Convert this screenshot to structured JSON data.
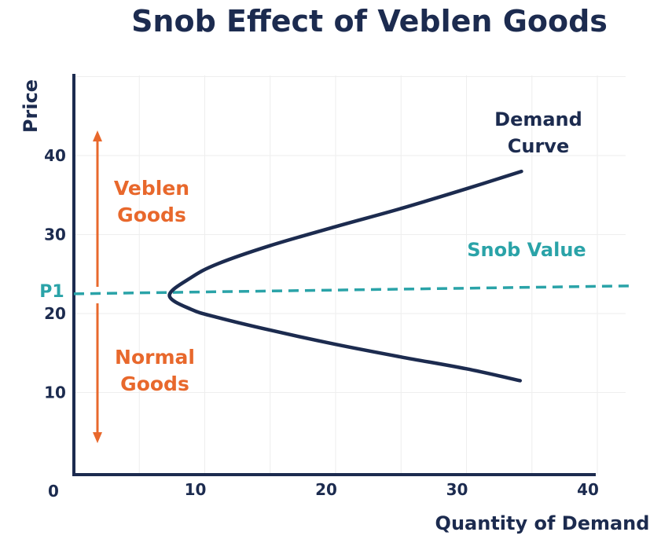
{
  "colors": {
    "axis": "#1c2b4f",
    "curve": "#1c2b4f",
    "snob": "#2aa3a8",
    "goods": "#e8682c",
    "grid": "#eeeeee"
  },
  "chart_data": {
    "type": "line",
    "title": "Snob Effect of Veblen Goods",
    "xlabel": "Quantity of Demand",
    "ylabel": "Price",
    "xlim": [
      0,
      40
    ],
    "ylim": [
      0,
      50
    ],
    "origin_label": "0",
    "x_ticks": [
      {
        "value": 10,
        "label": "10"
      },
      {
        "value": 20,
        "label": "20"
      },
      {
        "value": 30,
        "label": "30"
      },
      {
        "value": 40,
        "label": "40"
      }
    ],
    "y_ticks": [
      {
        "value": 10,
        "label": "10"
      },
      {
        "value": 20,
        "label": "20"
      },
      {
        "value": 30,
        "label": "30"
      },
      {
        "value": 40,
        "label": "40"
      }
    ],
    "series": [
      {
        "name": "Demand Curve",
        "points": [
          {
            "x": 34.1,
            "y": 11.5
          },
          {
            "x": 30.0,
            "y": 13.0
          },
          {
            "x": 25.0,
            "y": 14.5
          },
          {
            "x": 20.0,
            "y": 16.1
          },
          {
            "x": 15.0,
            "y": 17.9
          },
          {
            "x": 11.0,
            "y": 19.5
          },
          {
            "x": 9.0,
            "y": 20.5
          },
          {
            "x": 7.3,
            "y": 22.3
          },
          {
            "x": 9.0,
            "y": 24.6
          },
          {
            "x": 11.0,
            "y": 26.3
          },
          {
            "x": 15.0,
            "y": 28.6
          },
          {
            "x": 20.0,
            "y": 31.0
          },
          {
            "x": 25.0,
            "y": 33.3
          },
          {
            "x": 30.0,
            "y": 35.8
          },
          {
            "x": 34.2,
            "y": 38.0
          }
        ]
      }
    ],
    "snob_line": {
      "label": "Snob Value",
      "y_start": 22.5,
      "y_end": 23.5
    },
    "p1": {
      "label": "P1",
      "value": 22.5
    },
    "annotations": {
      "demand_curve": [
        "Demand",
        "Curve"
      ],
      "veblen_goods": [
        "Veblen",
        "Goods"
      ],
      "normal_goods": [
        "Normal",
        "Goods"
      ]
    },
    "grid": true
  }
}
